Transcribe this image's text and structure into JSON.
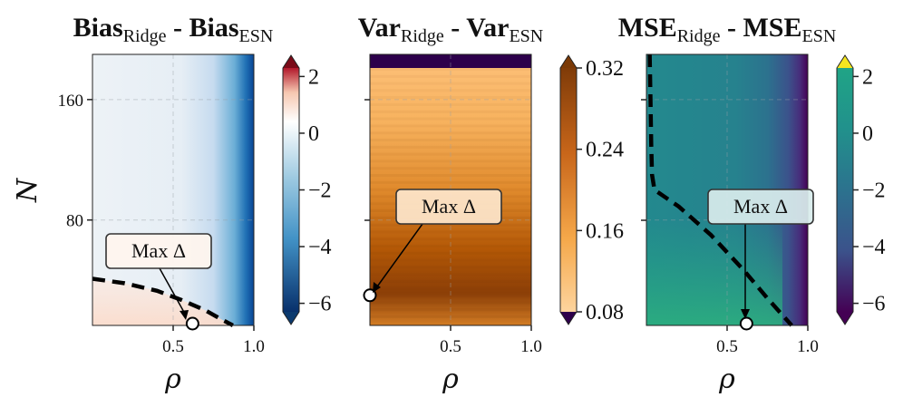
{
  "chart_data": [
    {
      "type": "heatmap",
      "title": {
        "main": "Bias",
        "sub": "Ridge",
        "sep": " - ",
        "main2": "Bias",
        "sub2": "ESN"
      },
      "xlabel": "ρ",
      "ylabel": "N",
      "xlim": [
        0.0,
        1.0
      ],
      "ylim": [
        10,
        190
      ],
      "xticks": [
        "0.5",
        "1.0"
      ],
      "xtick_values": [
        0.5,
        1.0
      ],
      "yticks": [
        "160",
        "80"
      ],
      "ytick_values": [
        160,
        80
      ],
      "colormap": "RdBu",
      "colorbar": {
        "ticks": [
          "2",
          "0",
          "−2",
          "−4",
          "−6"
        ],
        "tick_values": [
          2,
          0,
          -2,
          -4,
          -6
        ],
        "range": [
          -6.3,
          2.3
        ],
        "extend": "both",
        "top_color": "#7a0a18",
        "bottom_color": "#0b3a6e"
      },
      "zero_contour": [
        [
          0.0,
          41
        ],
        [
          0.2,
          38
        ],
        [
          0.4,
          33
        ],
        [
          0.55,
          27
        ],
        [
          0.7,
          20
        ],
        [
          0.8,
          14
        ],
        [
          0.87,
          10
        ]
      ],
      "max_delta_point": {
        "x": 0.62,
        "y": 10
      },
      "annotation": "Max Δ"
    },
    {
      "type": "heatmap",
      "title": {
        "main": "Var",
        "sub": "Ridge",
        "sep": " - ",
        "main2": "Var",
        "sub2": "ESN"
      },
      "xlabel": "ρ",
      "ylabel": "",
      "xlim": [
        0.0,
        1.0
      ],
      "ylim": [
        10,
        190
      ],
      "xticks": [
        "0.5",
        "1.0"
      ],
      "xtick_values": [
        0.5,
        1.0
      ],
      "yticks": [],
      "ytick_values": [],
      "colormap": "PuOr",
      "colorbar": {
        "ticks": [
          "0.32",
          "0.24",
          "0.16",
          "0.08"
        ],
        "tick_values": [
          0.32,
          0.24,
          0.16,
          0.08
        ],
        "range": [
          0.08,
          0.32
        ],
        "extend": "both",
        "top_color": "#7a3906",
        "bottom_color": "#2d004b"
      },
      "top_band_value": 0.02,
      "max_delta_point": {
        "x": 0.0,
        "y": 30
      },
      "annotation": "Max Δ"
    },
    {
      "type": "heatmap",
      "title": {
        "main": "MSE",
        "sub": "Ridge",
        "sep": " - ",
        "main2": "MSE",
        "sub2": "ESN"
      },
      "xlabel": "ρ",
      "ylabel": "",
      "xlim": [
        0.0,
        1.0
      ],
      "ylim": [
        10,
        190
      ],
      "xticks": [
        "0.5",
        "1.0"
      ],
      "xtick_values": [
        0.5,
        1.0
      ],
      "yticks": [],
      "ytick_values": [],
      "colormap": "viridis",
      "colorbar": {
        "ticks": [
          "2",
          "0",
          "−2",
          "−4",
          "−6"
        ],
        "tick_values": [
          2,
          0,
          -2,
          -4,
          -6
        ],
        "range": [
          -6.3,
          2.3
        ],
        "extend": "both",
        "top_color": "#f4e61e",
        "bottom_color": "#440154"
      },
      "zero_contour": [
        [
          0.02,
          190
        ],
        [
          0.025,
          160
        ],
        [
          0.03,
          130
        ],
        [
          0.035,
          110
        ],
        [
          0.05,
          100
        ],
        [
          0.2,
          89
        ],
        [
          0.4,
          70
        ],
        [
          0.6,
          47
        ],
        [
          0.75,
          28
        ],
        [
          0.9,
          10
        ]
      ],
      "max_delta_point": {
        "x": 0.62,
        "y": 10
      },
      "annotation": "Max Δ"
    }
  ]
}
